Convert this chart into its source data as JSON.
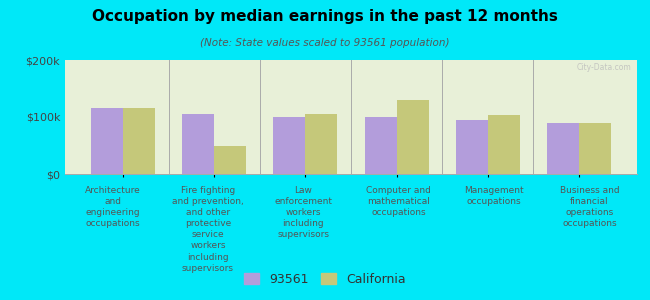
{
  "title": "Occupation by median earnings in the past 12 months",
  "subtitle": "(Note: State values scaled to 93561 population)",
  "background_color": "#00e8f8",
  "plot_bg_color": "#e8f0d8",
  "categories": [
    "Architecture\nand\nengineering\noccupations",
    "Fire fighting\nand prevention,\nand other\nprotective\nservice\nworkers\nincluding\nsupervisors",
    "Law\nenforcement\nworkers\nincluding\nsupervisors",
    "Computer and\nmathematical\noccupations",
    "Management\noccupations",
    "Business and\nfinancial\noperations\noccupations"
  ],
  "values_93561": [
    115000,
    105000,
    100000,
    100000,
    95000,
    90000
  ],
  "values_california": [
    115000,
    50000,
    105000,
    130000,
    103000,
    90000
  ],
  "color_93561": "#b39ddb",
  "color_california": "#c5c87a",
  "ylim": [
    0,
    200000
  ],
  "yticks": [
    0,
    100000,
    200000
  ],
  "ytick_labels": [
    "$0",
    "$100k",
    "$200k"
  ],
  "legend_93561": "93561",
  "legend_california": "California",
  "bar_width": 0.35
}
